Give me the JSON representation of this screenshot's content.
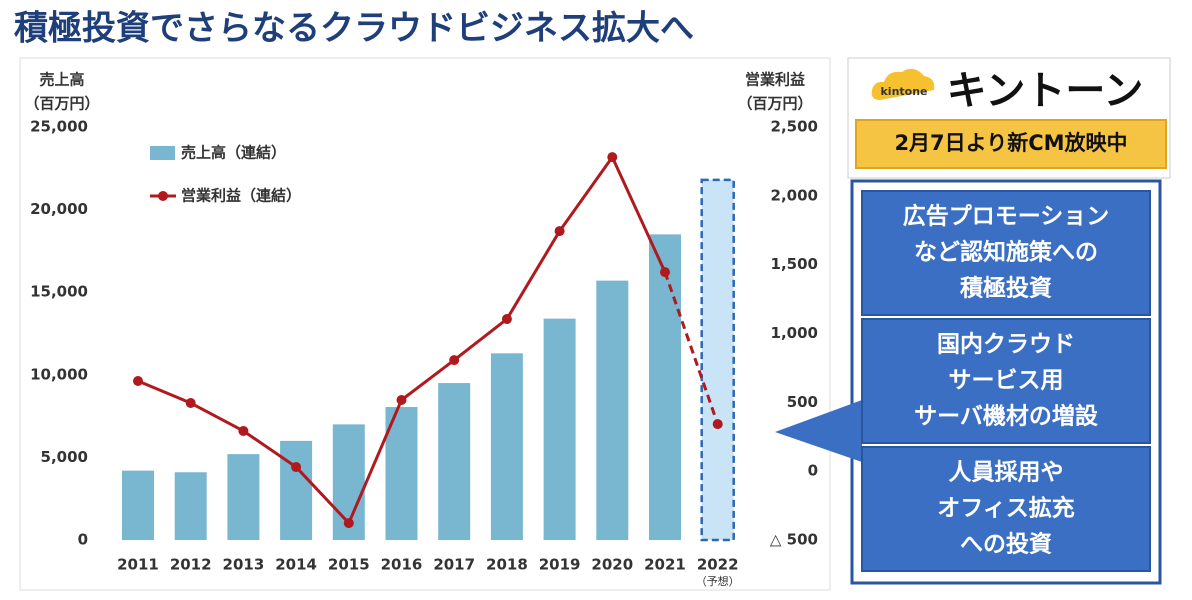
{
  "title": "積極投資でさらなるクラウドビジネス拡大へ",
  "chart_data": {
    "type": "combo",
    "ylabel": "売上高",
    "ylabel_unit": "（百万円）",
    "y2label": "営業利益",
    "y2label_unit": "（百万円）",
    "categories": [
      "2011",
      "2012",
      "2013",
      "2014",
      "2015",
      "2016",
      "2017",
      "2018",
      "2019",
      "2020",
      "2021",
      "2022"
    ],
    "forecast_label": "（予想）",
    "series": [
      {
        "name": "売上高（連結）",
        "type": "bar",
        "color": "#79b7d1",
        "forecast_color": "#c9e4f6",
        "forecast_stroke": "#2c68b4",
        "values": [
          4200,
          4100,
          5200,
          6000,
          7000,
          8050,
          9500,
          11300,
          13400,
          15700,
          18500,
          21800
        ]
      },
      {
        "name": "営業利益（連結）",
        "type": "line",
        "axis": "y2",
        "color": "#b0191e",
        "values": [
          655,
          495,
          292,
          30,
          -377,
          517,
          807,
          1105,
          1744,
          2281,
          1446,
          342
        ]
      }
    ],
    "ylim": [
      0,
      25000
    ],
    "yticks": [
      0,
      {
        "value": 5000,
        "label": "5,000"
      },
      {
        "value": 10000,
        "label": "10,000"
      },
      {
        "value": 15000,
        "label": "15,000"
      },
      {
        "value": 20000,
        "label": "20,000"
      },
      {
        "value": 25000,
        "label": "25,000"
      }
    ],
    "y2lim": [
      -500,
      2500
    ],
    "y2ticks": [
      {
        "value": -500,
        "label": "△ 500"
      },
      0,
      500,
      {
        "value": 1000,
        "label": "1,000"
      },
      {
        "value": 1500,
        "label": "1,500"
      },
      {
        "value": 2000,
        "label": "2,000"
      },
      {
        "value": 2500,
        "label": "2,500"
      }
    ],
    "grid": false
  },
  "panel": {
    "logo": "kintone",
    "brand": "キントーン",
    "banner": "2月7日より新CM放映中",
    "boxes": [
      [
        "広告プロモーション",
        "など認知施策への",
        "積極投資"
      ],
      [
        "国内クラウド",
        "サービス用",
        "サーバ機材の増設"
      ],
      [
        "人員採用や",
        "オフィス拡充",
        "への投資"
      ]
    ]
  }
}
